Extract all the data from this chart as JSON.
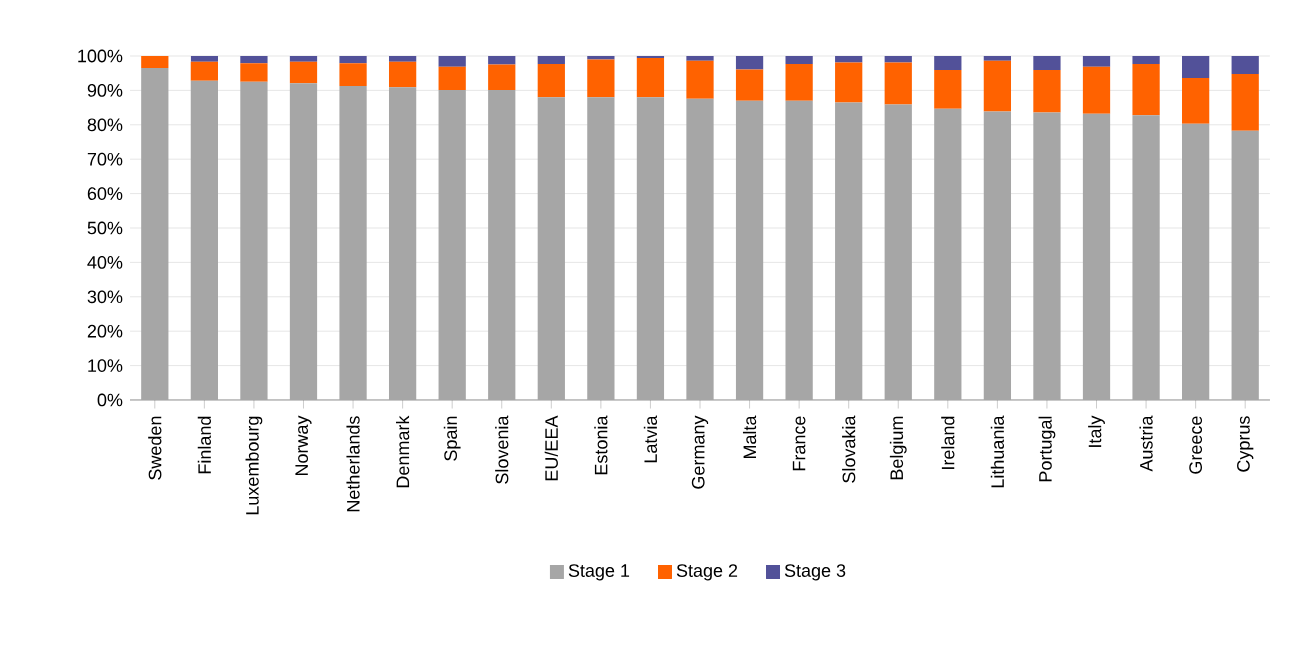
{
  "chart_data": {
    "type": "bar",
    "stacked": true,
    "categories": [
      "Sweden",
      "Finland",
      "Luxembourg",
      "Norway",
      "Netherlands",
      "Denmark",
      "Spain",
      "Slovenia",
      "EU/EEA",
      "Estonia",
      "Latvia",
      "Germany",
      "Malta",
      "France",
      "Slovakia",
      "Belgium",
      "Ireland",
      "Lithuania",
      "Portugal",
      "Italy",
      "Austria",
      "Greece",
      "Cyprus"
    ],
    "series": [
      {
        "name": "Stage 1",
        "color": "#a6a6a6",
        "values": [
          96.5,
          92.8,
          92.5,
          92.1,
          91.3,
          90.9,
          90.1,
          90.1,
          88.0,
          88.0,
          88.0,
          87.6,
          87.0,
          87.0,
          86.5,
          85.9,
          84.7,
          83.9,
          83.6,
          83.2,
          82.8,
          80.3,
          78.3
        ]
      },
      {
        "name": "Stage 2",
        "color": "#ff6200",
        "values": [
          3.5,
          5.5,
          5.4,
          6.2,
          6.6,
          7.4,
          6.8,
          7.4,
          9.7,
          11.0,
          11.4,
          11.0,
          9.1,
          10.7,
          11.6,
          12.2,
          11.2,
          14.7,
          12.3,
          13.7,
          14.9,
          13.3,
          16.5
        ]
      },
      {
        "name": "Stage 3",
        "color": "#525199",
        "values": [
          0.0,
          1.7,
          2.1,
          1.7,
          2.1,
          1.7,
          3.1,
          2.5,
          2.3,
          1.0,
          0.6,
          1.4,
          3.9,
          2.3,
          1.9,
          1.9,
          4.1,
          1.4,
          4.1,
          3.1,
          2.3,
          6.4,
          5.2
        ]
      }
    ],
    "ylim": [
      0,
      100
    ],
    "yticks": [
      {
        "value": 0,
        "label": "0%"
      },
      {
        "value": 10,
        "label": "10%"
      },
      {
        "value": 20,
        "label": "20%"
      },
      {
        "value": 30,
        "label": "30%"
      },
      {
        "value": 40,
        "label": "40%"
      },
      {
        "value": 50,
        "label": "50%"
      },
      {
        "value": 60,
        "label": "60%"
      },
      {
        "value": 70,
        "label": "70%"
      },
      {
        "value": 80,
        "label": "80%"
      },
      {
        "value": 90,
        "label": "90%"
      },
      {
        "value": 100,
        "label": "100%"
      }
    ],
    "grid": "y",
    "legend": "bottom"
  }
}
